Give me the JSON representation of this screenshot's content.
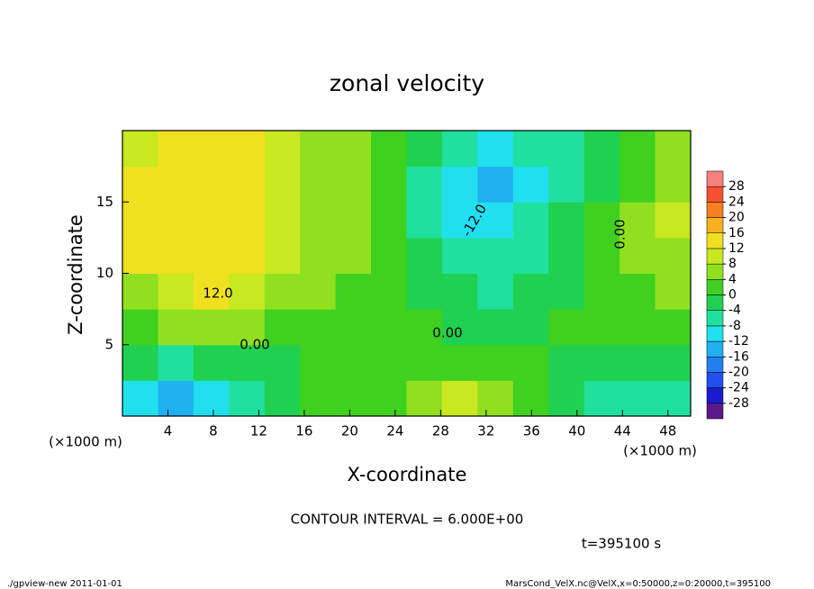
{
  "chart_data": {
    "type": "contour",
    "title": "zonal velocity",
    "xlabel": "X-coordinate",
    "ylabel": "Z-coordinate",
    "x_unit": "(×1000 m)",
    "y_unit": "(×1000 m)",
    "xlim": [
      0,
      50
    ],
    "ylim": [
      0,
      20
    ],
    "xticks": [
      4,
      8,
      12,
      16,
      20,
      24,
      28,
      32,
      36,
      40,
      44,
      48
    ],
    "yticks": [
      5,
      10,
      15
    ],
    "x_edges": [
      0,
      3.125,
      6.25,
      9.375,
      12.5,
      15.625,
      18.75,
      21.875,
      25,
      28.125,
      31.25,
      34.375,
      37.5,
      40.625,
      43.75,
      46.875,
      50
    ],
    "y_edges": [
      0,
      2.5,
      5,
      7.5,
      10,
      12.5,
      15,
      17.5,
      20
    ],
    "z": [
      [
        -10,
        -14,
        -12,
        -6,
        -4,
        0,
        2,
        2,
        6,
        10,
        6,
        0,
        -4,
        -6,
        -8,
        -6
      ],
      [
        -4,
        -6,
        -4,
        -2,
        -2,
        0,
        0,
        0,
        2,
        2,
        2,
        0,
        -2,
        -2,
        -4,
        -4
      ],
      [
        2,
        4,
        6,
        4,
        2,
        0,
        0,
        0,
        0,
        -2,
        -2,
        -2,
        0,
        0,
        0,
        2
      ],
      [
        6,
        10,
        12,
        10,
        6,
        4,
        2,
        0,
        -2,
        -4,
        -6,
        -4,
        -2,
        0,
        2,
        4
      ],
      [
        12,
        14,
        14,
        12,
        8,
        6,
        4,
        0,
        -4,
        -8,
        -8,
        -6,
        -2,
        0,
        4,
        6
      ],
      [
        14,
        15,
        14,
        12,
        8,
        6,
        4,
        0,
        -6,
        -12,
        -12,
        -8,
        -4,
        0,
        4,
        8
      ],
      [
        12,
        14,
        13,
        12,
        10,
        6,
        4,
        0,
        -6,
        -12,
        -13,
        -10,
        -6,
        -2,
        2,
        6
      ],
      [
        10,
        12,
        12,
        12,
        10,
        6,
        4,
        2,
        -4,
        -8,
        -10,
        -8,
        -6,
        -2,
        2,
        4
      ]
    ],
    "colorbar": {
      "ticks": [
        -28,
        -24,
        -20,
        -16,
        -12,
        -8,
        -4,
        0,
        4,
        8,
        12,
        16,
        20,
        24,
        28
      ],
      "colors": [
        "#5a1a8a",
        "#1a1ad0",
        "#2050f0",
        "#2080f0",
        "#20b0f0",
        "#20e0f0",
        "#20e0a0",
        "#20d050",
        "#40d020",
        "#90e020",
        "#c8e820",
        "#f0e020",
        "#f8b020",
        "#f88020",
        "#f85030",
        "#f88080"
      ]
    },
    "annotations": [
      "12.0",
      "0.00",
      "0.00",
      "-12.0",
      "0.00"
    ],
    "contour_interval": "CONTOUR INTERVAL = 6.000E+00",
    "time_label": "t=395100 s",
    "footer_left": "./gpview-new  2011-01-01",
    "footer_right": "MarsCond_VelX.nc@VelX,x=0:50000,z=0:20000,t=395100"
  }
}
